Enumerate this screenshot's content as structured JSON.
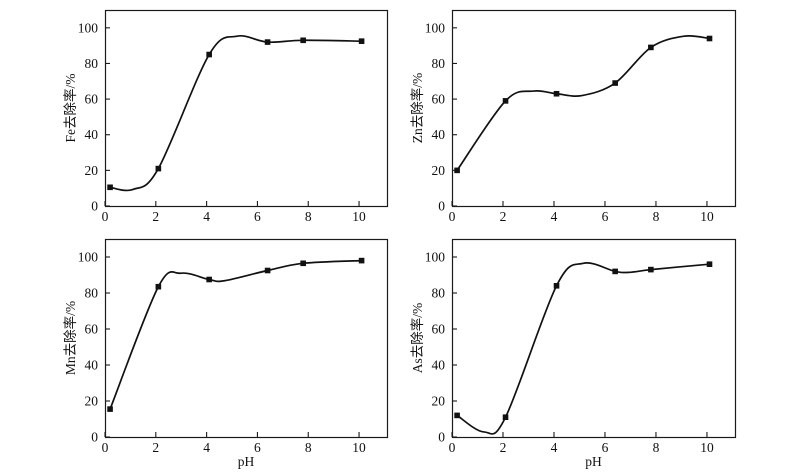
{
  "figure": {
    "background": "#ffffff",
    "axis_color": "#1a1a1a",
    "curve_color": "#111111",
    "marker_color": "#111111",
    "marker": "square",
    "grid": false,
    "legend": "none"
  },
  "chart_data": [
    {
      "type": "line",
      "id": "fe-removal",
      "title": "",
      "ylabel": "Fe去除率/%",
      "xlabel": "",
      "x": [
        0.2,
        2.1,
        4.1,
        6.4,
        7.8,
        10.1
      ],
      "y": [
        10.5,
        21,
        85,
        92,
        93,
        92.5
      ],
      "curve_visible_extrema": [
        [
          1.1,
          9.3
        ],
        [
          5.2,
          95.3
        ]
      ],
      "xticks": [
        "0",
        "2",
        "4",
        "6",
        "8",
        "10"
      ],
      "xtick_values": [
        0,
        2,
        4,
        6,
        8,
        10
      ],
      "yticks": [
        "0",
        "20",
        "40",
        "60",
        "80",
        "100"
      ],
      "ytick_values": [
        0,
        20,
        40,
        60,
        80,
        100
      ],
      "xlim": [
        0,
        11.1
      ],
      "ylim": [
        0,
        110
      ]
    },
    {
      "type": "line",
      "id": "zn-removal",
      "title": "",
      "ylabel": "Zn去除率/%",
      "xlabel": "",
      "x": [
        0.2,
        2.1,
        4.1,
        6.4,
        7.8,
        10.1
      ],
      "y": [
        20,
        59,
        63,
        69,
        89,
        94
      ],
      "curve_visible_extrema": [
        [
          3.2,
          64.5
        ],
        [
          5.1,
          62
        ],
        [
          9.1,
          95.3
        ]
      ],
      "xticks": [
        "0",
        "2",
        "4",
        "6",
        "8",
        "10"
      ],
      "xtick_values": [
        0,
        2,
        4,
        6,
        8,
        10
      ],
      "yticks": [
        "0",
        "20",
        "40",
        "60",
        "80",
        "100"
      ],
      "ytick_values": [
        0,
        20,
        40,
        60,
        80,
        100
      ],
      "xlim": [
        0,
        11.1
      ],
      "ylim": [
        0,
        110
      ]
    },
    {
      "type": "line",
      "id": "mn-removal",
      "title": "",
      "ylabel": "Mn去除率/%",
      "xlabel": "pH",
      "x": [
        0.2,
        2.1,
        4.1,
        6.4,
        7.8,
        10.1
      ],
      "y": [
        15.5,
        83.5,
        87.5,
        92.5,
        96.5,
        98
      ],
      "curve_visible_extrema": [
        [
          3.0,
          91
        ],
        [
          4.7,
          86.8
        ]
      ],
      "xticks": [
        "0",
        "2",
        "4",
        "6",
        "8",
        "10"
      ],
      "xtick_values": [
        0,
        2,
        4,
        6,
        8,
        10
      ],
      "yticks": [
        "0",
        "20",
        "40",
        "60",
        "80",
        "100"
      ],
      "ytick_values": [
        0,
        20,
        40,
        60,
        80,
        100
      ],
      "xlim": [
        0,
        11.1
      ],
      "ylim": [
        0,
        110
      ]
    },
    {
      "type": "line",
      "id": "as-removal",
      "title": "",
      "ylabel": "As去除率/%",
      "xlabel": "pH",
      "x": [
        0.2,
        2.1,
        4.1,
        6.4,
        7.8,
        10.1
      ],
      "y": [
        12,
        11,
        84,
        92,
        93,
        96
      ],
      "curve_visible_extrema": [
        [
          1.25,
          2.8
        ],
        [
          5.15,
          96.5
        ],
        [
          7.0,
          91.5
        ]
      ],
      "xticks": [
        "0",
        "2",
        "4",
        "6",
        "8",
        "10"
      ],
      "xtick_values": [
        0,
        2,
        4,
        6,
        8,
        10
      ],
      "yticks": [
        "0",
        "20",
        "40",
        "60",
        "80",
        "100"
      ],
      "ytick_values": [
        0,
        20,
        40,
        60,
        80,
        100
      ],
      "xlim": [
        0,
        11.1
      ],
      "ylim": [
        0,
        110
      ]
    }
  ]
}
